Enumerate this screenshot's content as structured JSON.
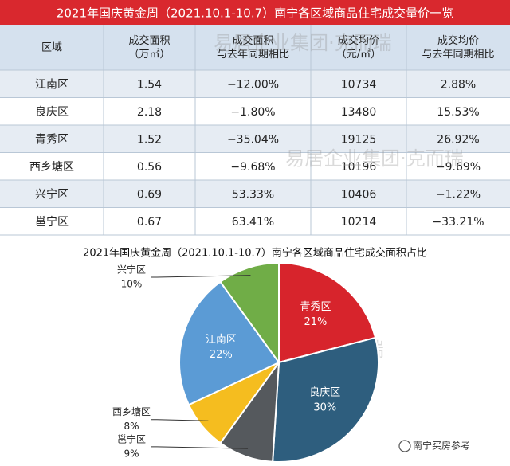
{
  "banner": "2021年国庆黄金周（2021.10.1-10.7）南宁各区域商品住宅成交量价一览",
  "table": {
    "header": [
      [
        "区域"
      ],
      [
        "成交面积",
        "（万㎡）"
      ],
      [
        "成交面积",
        "与去年同期相比"
      ],
      [
        "成交均价",
        "（元/㎡）"
      ],
      [
        "成交均价",
        "与去年同期相比"
      ]
    ],
    "rows": [
      [
        "江南区",
        "1.54",
        "−12.00%",
        "10734",
        "2.88%"
      ],
      [
        "良庆区",
        "2.18",
        "−1.80%",
        "13480",
        "15.53%"
      ],
      [
        "青秀区",
        "1.52",
        "−35.04%",
        "19125",
        "26.92%"
      ],
      [
        "西乡塘区",
        "0.56",
        "−9.68%",
        "10196",
        "−9.69%"
      ],
      [
        "兴宁区",
        "0.69",
        "53.33%",
        "10406",
        "−1.22%"
      ],
      [
        "邕宁区",
        "0.67",
        "63.41%",
        "10214",
        "−33.21%"
      ]
    ]
  },
  "chart_data": {
    "type": "pie",
    "title": "2021年国庆黄金周（2021.10.1-10.7）南宁各区域商品住宅成交面积占比",
    "categories": [
      "青秀区",
      "良庆区",
      "邕宁区",
      "西乡塘区",
      "江南区",
      "兴宁区"
    ],
    "values": [
      21,
      30,
      9,
      8,
      22,
      10
    ],
    "value_labels": [
      "21%",
      "30%",
      "9%",
      "8%",
      "22%",
      "10%"
    ],
    "colors": [
      "#d7242c",
      "#2e5e7e",
      "#55595d",
      "#f5bd1f",
      "#5b9bd5",
      "#70ad47"
    ]
  },
  "watermark": "易居企业集团·克而瑞",
  "footer": "南宁买房参考"
}
